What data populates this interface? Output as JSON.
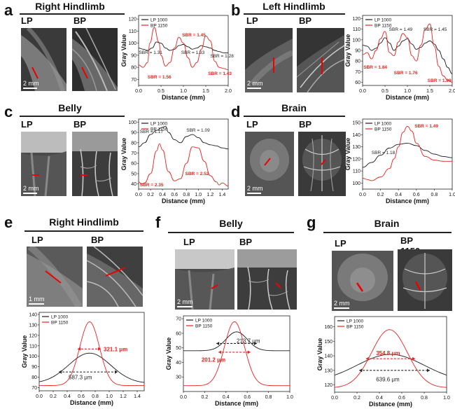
{
  "panels": {
    "a": {
      "letter": "a",
      "title": "Right Hindlimb",
      "lp": "LP 1000",
      "bp": "BP 1150",
      "scale": "2 mm"
    },
    "b": {
      "letter": "b",
      "title": "Left Hindlimb",
      "lp": "LP 1000",
      "bp": "BP 1150",
      "scale": "2 mm"
    },
    "c": {
      "letter": "c",
      "title": "Belly",
      "lp": "LP 1000",
      "bp": "BP 1150",
      "scale": "2 mm"
    },
    "d": {
      "letter": "d",
      "title": "Brain",
      "lp": "LP 1000",
      "bp": "BP 1150",
      "scale": "2 mm"
    },
    "e": {
      "letter": "e",
      "title": "Right Hindlimb",
      "lp": "LP 1000",
      "bp": "BP 1150",
      "scale": "1 mm"
    },
    "f": {
      "letter": "f",
      "title": "Belly",
      "lp": "LP 1000",
      "bp": "BP 1150",
      "scale": "2 mm"
    },
    "g": {
      "letter": "g",
      "title": "Brain",
      "lp": "LP 1000",
      "bp": "BP 1150",
      "scale": "2 mm"
    }
  },
  "colors": {
    "lp": "#1a1a1a",
    "bp": "#e8231f",
    "anno_bp": "#e8231f",
    "anno_lp": "#222222"
  },
  "chart_data": [
    {
      "id": "a",
      "type": "line",
      "xlabel": "Distance (mm)",
      "ylabel": "Gray Value",
      "xlim": [
        0,
        2.0
      ],
      "ylim": [
        65,
        123
      ],
      "xticks": [
        "0.0",
        "0.5",
        "1.0",
        "1.5",
        "2.0"
      ],
      "yticks": [
        "70",
        "80",
        "90",
        "100",
        "110",
        "120"
      ],
      "legend": [
        "LP 1000",
        "BP 1150"
      ],
      "series": [
        {
          "name": "LP 1000",
          "x": [
            0,
            0.1,
            0.2,
            0.3,
            0.4,
            0.5,
            0.6,
            0.7,
            0.8,
            0.9,
            1.0,
            1.1,
            1.2,
            1.3,
            1.4,
            1.5,
            1.6,
            1.7,
            1.8,
            1.9,
            2.0
          ],
          "values": [
            96,
            95,
            94,
            96,
            101,
            100,
            96,
            94,
            95,
            98,
            99,
            97,
            95,
            96,
            98,
            97,
            96,
            94,
            93,
            92,
            92
          ]
        },
        {
          "name": "BP 1150",
          "x": [
            0,
            0.1,
            0.2,
            0.25,
            0.35,
            0.45,
            0.5,
            0.6,
            0.7,
            0.8,
            0.9,
            1.0,
            1.1,
            1.2,
            1.3,
            1.4,
            1.5,
            1.6,
            1.7,
            1.8,
            1.9,
            2.0
          ],
          "values": [
            82,
            80,
            84,
            100,
            113,
            101,
            90,
            81,
            84,
            96,
            105,
            100,
            88,
            80,
            84,
            95,
            106,
            102,
            85,
            80,
            79,
            78
          ]
        }
      ],
      "annotations": [
        {
          "text": "SBR = 1.31",
          "color": "lp"
        },
        {
          "text": "SBR = 1.33",
          "color": "lp"
        },
        {
          "text": "SBR = 1.28",
          "color": "lp"
        },
        {
          "text": "SBR = 1.56",
          "color": "bp"
        },
        {
          "text": "SBR = 1.45",
          "color": "bp"
        },
        {
          "text": "SBR = 1.43",
          "color": "bp"
        }
      ]
    },
    {
      "id": "b",
      "type": "line",
      "xlabel": "Distance (mm)",
      "ylabel": "Gray Value",
      "xlim": [
        0,
        2.0
      ],
      "ylim": [
        57,
        123
      ],
      "xticks": [
        "0.0",
        "0.5",
        "1.0",
        "1.5",
        "2.0"
      ],
      "yticks": [
        "60",
        "70",
        "80",
        "90",
        "100",
        "110",
        "120"
      ],
      "legend": [
        "LP 1000",
        "BP 1150"
      ],
      "series": [
        {
          "name": "LP 1000",
          "x": [
            0,
            0.1,
            0.2,
            0.3,
            0.4,
            0.5,
            0.6,
            0.7,
            0.8,
            0.9,
            1.0,
            1.1,
            1.2,
            1.3,
            1.4,
            1.5,
            1.6,
            1.7,
            1.8,
            1.9,
            2.0
          ],
          "values": [
            95,
            94,
            90,
            92,
            97,
            102,
            97,
            90,
            94,
            99,
            101,
            96,
            91,
            93,
            97,
            99,
            96,
            90,
            82,
            74,
            68
          ]
        },
        {
          "name": "BP 1150",
          "x": [
            0,
            0.1,
            0.2,
            0.3,
            0.4,
            0.5,
            0.6,
            0.7,
            0.8,
            0.9,
            1.0,
            1.1,
            1.2,
            1.3,
            1.4,
            1.5,
            1.6,
            1.7,
            1.8,
            1.9,
            2.0
          ],
          "values": [
            86,
            88,
            82,
            90,
            101,
            108,
            88,
            85,
            98,
            106,
            102,
            85,
            80,
            95,
            110,
            115,
            94,
            75,
            66,
            62,
            60
          ]
        }
      ],
      "annotations": [
        {
          "text": "SBR = 1.49",
          "color": "lp"
        },
        {
          "text": "SBR = 1.45",
          "color": "lp"
        },
        {
          "text": "SBR = 1.84",
          "color": "bp"
        },
        {
          "text": "SBR = 1.76",
          "color": "bp"
        },
        {
          "text": "SBR = 1.89",
          "color": "bp"
        }
      ]
    },
    {
      "id": "c",
      "type": "line",
      "xlabel": "Distance (mm)",
      "ylabel": "Gray Value",
      "xlim": [
        0,
        1.5
      ],
      "ylim": [
        35,
        103
      ],
      "xticks": [
        "0.0",
        "0.2",
        "0.4",
        "0.6",
        "0.8",
        "1.0",
        "1.2",
        "1.4"
      ],
      "yticks": [
        "40",
        "50",
        "60",
        "70",
        "80",
        "90",
        "100"
      ],
      "legend": [
        "LP 1000",
        "BP 1150"
      ],
      "series": [
        {
          "name": "LP 1000",
          "x": [
            0,
            0.1,
            0.2,
            0.3,
            0.4,
            0.45,
            0.5,
            0.6,
            0.7,
            0.8,
            0.9,
            1.0,
            1.1,
            1.2,
            1.3,
            1.4,
            1.5
          ],
          "values": [
            76,
            80,
            88,
            92,
            95,
            96,
            90,
            83,
            80,
            86,
            88,
            85,
            80,
            78,
            77,
            75,
            74
          ]
        },
        {
          "name": "BP 1150",
          "x": [
            0,
            0.05,
            0.1,
            0.2,
            0.3,
            0.35,
            0.4,
            0.5,
            0.6,
            0.7,
            0.8,
            0.9,
            1.0,
            1.1,
            1.2,
            1.3,
            1.35,
            1.4,
            1.5
          ],
          "values": [
            42,
            40,
            41,
            50,
            72,
            79,
            73,
            52,
            43,
            45,
            60,
            76,
            75,
            62,
            48,
            42,
            39,
            41,
            38
          ]
        }
      ],
      "annotations": [
        {
          "text": "SBR = 1.17",
          "color": "lp"
        },
        {
          "text": "SBR = 1.09",
          "color": "lp"
        },
        {
          "text": "SBR = 2.35",
          "color": "bp"
        },
        {
          "text": "SBR = 2.52",
          "color": "bp"
        }
      ]
    },
    {
      "id": "d",
      "type": "line",
      "xlabel": "Distance (mm)",
      "ylabel": "Gray Value",
      "xlim": [
        0,
        1.0
      ],
      "ylim": [
        95,
        153
      ],
      "xticks": [
        "0.0",
        "0.2",
        "0.4",
        "0.6",
        "0.8",
        "1.0"
      ],
      "yticks": [
        "100",
        "110",
        "120",
        "130",
        "140",
        "150"
      ],
      "legend": [
        "LP 1000",
        "BP 1150"
      ],
      "series": [
        {
          "name": "LP 1000",
          "x": [
            0,
            0.1,
            0.2,
            0.3,
            0.4,
            0.5,
            0.6,
            0.7,
            0.8,
            0.9,
            1.0
          ],
          "values": [
            113,
            117,
            123,
            129,
            132,
            133,
            131,
            127,
            124,
            122,
            121
          ]
        },
        {
          "name": "BP 1150",
          "x": [
            0,
            0.05,
            0.1,
            0.2,
            0.3,
            0.35,
            0.4,
            0.45,
            0.5,
            0.55,
            0.6,
            0.7,
            0.8,
            0.9,
            1.0
          ],
          "values": [
            104,
            103,
            102,
            105,
            112,
            120,
            130,
            142,
            147,
            143,
            133,
            122,
            119,
            118,
            118
          ]
        }
      ],
      "annotations": [
        {
          "text": "SBR = 1.49",
          "color": "bp"
        },
        {
          "text": "SBR = 1.18",
          "color": "lp"
        }
      ]
    },
    {
      "id": "e",
      "type": "line",
      "xlabel": "Distance (mm)",
      "ylabel": "Gray Value",
      "xlim": [
        0,
        1.5
      ],
      "ylim": [
        67,
        142
      ],
      "xticks": [
        "0.0",
        "0.2",
        "0.4",
        "0.6",
        "0.8",
        "1.0",
        "1.2",
        "1.4"
      ],
      "yticks": [
        "70",
        "80",
        "90",
        "100",
        "110",
        "120",
        "130",
        "140"
      ],
      "legend": [
        "LP 1000",
        "BP 1150"
      ],
      "series": [
        {
          "name": "LP 1000",
          "center": 0.72,
          "sigma": 0.3,
          "base": 74,
          "peak": 103
        },
        {
          "name": "BP 1150",
          "center": 0.72,
          "sigma": 0.14,
          "base": 72,
          "peak": 133
        }
      ],
      "annotations": [
        {
          "text": "321.1 μm",
          "color": "bp"
        },
        {
          "text": "587.3 μm",
          "color": "lp"
        }
      ]
    },
    {
      "id": "f",
      "type": "line",
      "xlabel": "Distance (mm)",
      "ylabel": "Gray Value",
      "xlim": [
        0,
        1.0
      ],
      "ylim": [
        20,
        72
      ],
      "xticks": [
        "0.0",
        "0.2",
        "0.4",
        "0.6",
        "0.8",
        "1.0"
      ],
      "yticks": [
        "30",
        "40",
        "50",
        "60",
        "70"
      ],
      "legend": [
        "LP 1000",
        "BP 1150"
      ],
      "series": [
        {
          "name": "LP 1000",
          "center": 0.5,
          "sigma": 0.1,
          "base": 48,
          "peak": 61
        },
        {
          "name": "BP 1150",
          "center": 0.48,
          "sigma": 0.095,
          "base": 24,
          "peak": 68
        }
      ],
      "annotations": [
        {
          "text": "213.7 μm",
          "color": "lp"
        },
        {
          "text": "201.2 μm",
          "color": "bp"
        }
      ]
    },
    {
      "id": "g",
      "type": "line",
      "xlabel": "Distance (mm)",
      "ylabel": "Gray Value",
      "xlim": [
        0,
        1.0
      ],
      "ylim": [
        115,
        167
      ],
      "xticks": [
        "0.0",
        "0.2",
        "0.4",
        "0.6",
        "0.8",
        "1.0"
      ],
      "yticks": [
        "120",
        "130",
        "140",
        "150",
        "160"
      ],
      "legend": [
        "LP 1000",
        "BP 1150"
      ],
      "series": [
        {
          "name": "LP 1000",
          "center": 0.5,
          "sigma": 0.3,
          "base": 122,
          "peak": 141
        },
        {
          "name": "BP 1150",
          "center": 0.49,
          "sigma": 0.16,
          "base": 118,
          "peak": 158
        }
      ],
      "annotations": [
        {
          "text": "354.8 μm",
          "color": "bp"
        },
        {
          "text": "639.6 μm",
          "color": "lp"
        }
      ]
    }
  ]
}
